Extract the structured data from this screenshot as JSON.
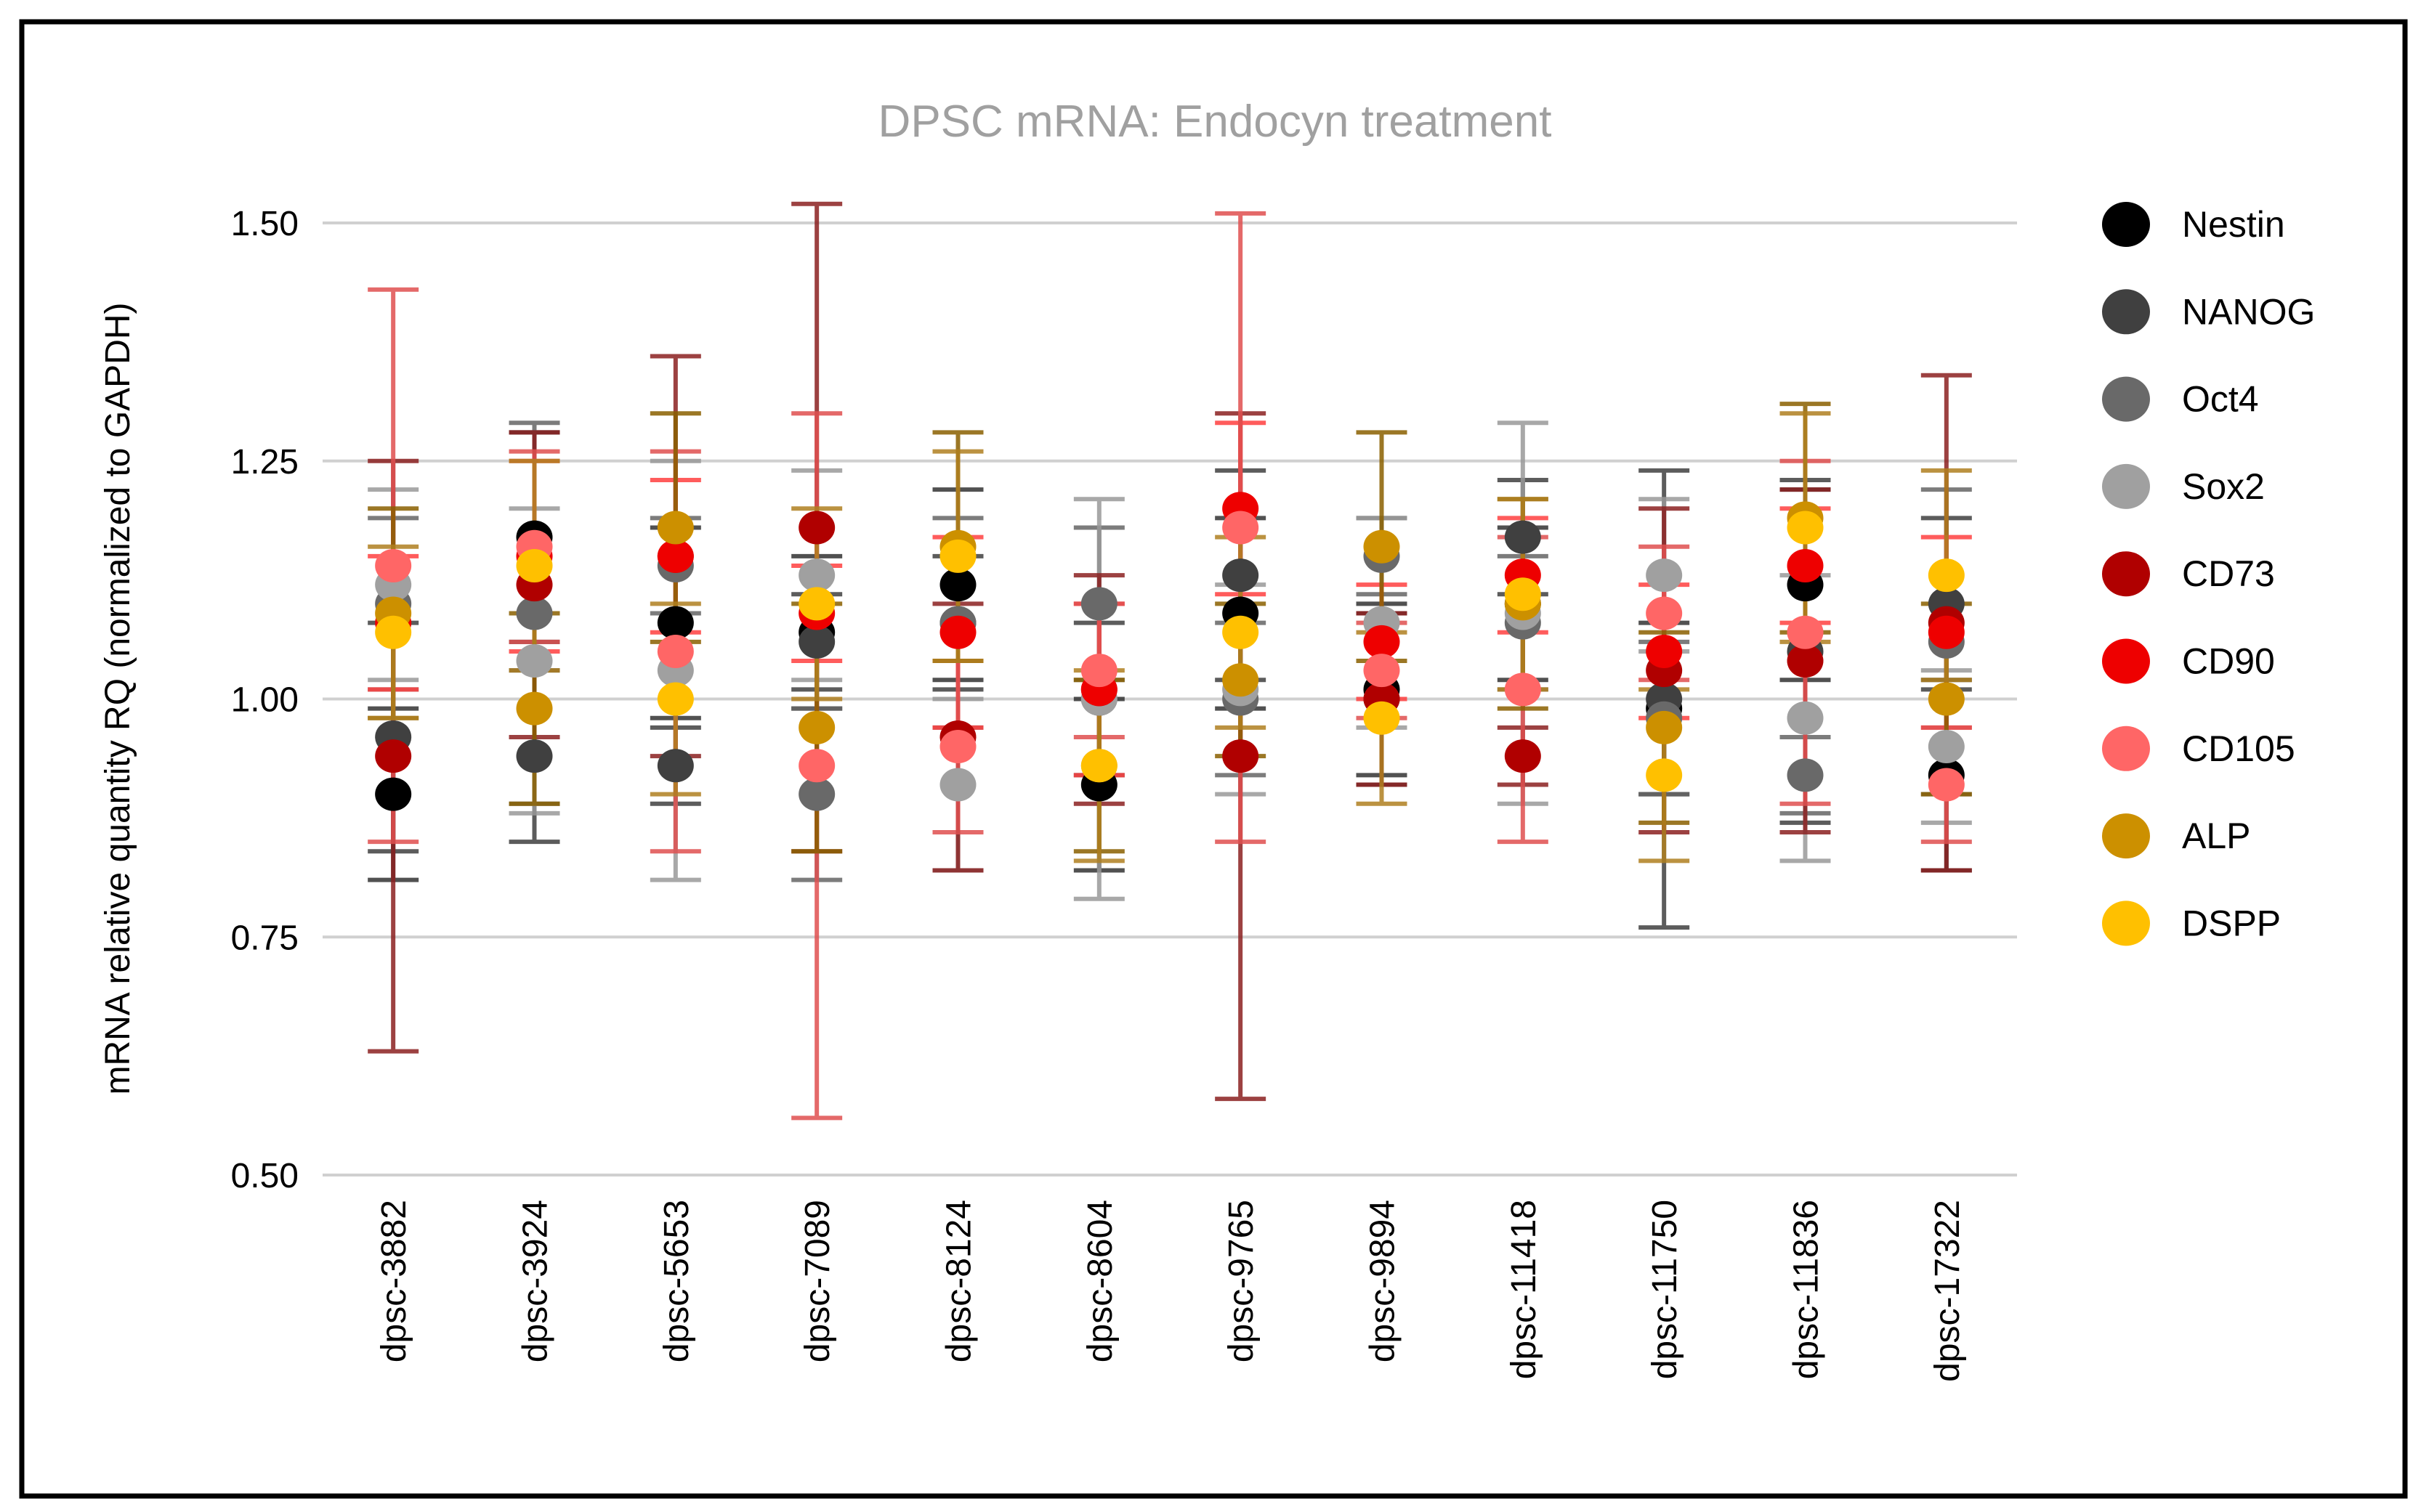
{
  "chart_data": {
    "type": "scatter",
    "title": "DPSC mRNA: Endocyn treatment",
    "xlabel": "",
    "ylabel": "mRNA relative quantity RQ (normalized to GAPDH)",
    "ylim": [
      0.5,
      1.5
    ],
    "yticks": [
      0.5,
      0.75,
      1.0,
      1.25,
      1.5
    ],
    "ytick_labels": [
      "0.50",
      "0.75",
      "1.00",
      "1.25",
      "1.50"
    ],
    "grid": true,
    "legend_position": "right",
    "categories": [
      "dpsc-3882",
      "dpsc-3924",
      "dpsc-5653",
      "dpsc-7089",
      "dpsc-8124",
      "dpsc-8604",
      "dpsc-9765",
      "dpsc-9894",
      "dpsc-11418",
      "dpsc-11750",
      "dpsc-11836",
      "dpsc-17322"
    ],
    "series": [
      {
        "name": "Nestin",
        "color": "#000000",
        "bar_color": "#333333",
        "values": [
          0.9,
          1.17,
          1.08,
          1.07,
          1.12,
          0.91,
          1.09,
          1.01,
          1.1,
          0.99,
          1.12,
          0.92
        ],
        "err": [
          0.09,
          0.11,
          0.1,
          0.08,
          0.1,
          0.09,
          0.1,
          0.09,
          0.08,
          0.09,
          0.1,
          0.1
        ]
      },
      {
        "name": "NANOG",
        "color": "#404040",
        "bar_color": "#404040",
        "values": [
          0.96,
          0.94,
          0.93,
          1.06,
          1.08,
          1.0,
          1.13,
          1.0,
          1.17,
          1.0,
          1.05,
          1.1
        ],
        "err": [
          0.12,
          0.09,
          0.04,
          0.05,
          0.07,
          0.08,
          0.11,
          0.09,
          0.06,
          0.24,
          0.18,
          0.09
        ]
      },
      {
        "name": "Oct4",
        "color": "#696969",
        "bar_color": "#666666",
        "values": [
          1.1,
          1.09,
          1.14,
          0.9,
          1.08,
          1.1,
          1.0,
          1.15,
          1.08,
          0.98,
          0.92,
          1.06
        ],
        "err": [
          0.09,
          0.2,
          0.05,
          0.09,
          0.11,
          0.08,
          0.08,
          0.04,
          0.07,
          0.08,
          0.04,
          0.16
        ]
      },
      {
        "name": "Sox2",
        "color": "#a0a0a0",
        "bar_color": "#999999",
        "values": [
          1.12,
          1.04,
          1.03,
          1.13,
          0.91,
          1.0,
          1.01,
          1.08,
          1.09,
          1.13,
          0.98,
          0.95
        ],
        "err": [
          0.1,
          0.16,
          0.22,
          0.11,
          0.09,
          0.21,
          0.11,
          0.11,
          0.2,
          0.08,
          0.15,
          0.08
        ]
      },
      {
        "name": "CD73",
        "color": "#b00000",
        "bar_color": "#8b2020",
        "values": [
          0.94,
          1.12,
          1.15,
          1.18,
          0.96,
          1.01,
          0.94,
          1.0,
          0.94,
          1.03,
          1.04,
          1.08
        ],
        "err": [
          0.31,
          0.16,
          0.21,
          0.34,
          0.14,
          0.12,
          0.36,
          0.09,
          0.03,
          0.17,
          0.18,
          0.26
        ]
      },
      {
        "name": "CD90",
        "color": "#ee0000",
        "bar_color": "#ff4040",
        "values": [
          1.08,
          1.15,
          1.15,
          1.09,
          1.07,
          1.01,
          1.2,
          1.06,
          1.13,
          1.05,
          1.14,
          1.07
        ],
        "err": [
          0.07,
          0.1,
          0.08,
          0.05,
          0.1,
          0.09,
          0.09,
          0.06,
          0.06,
          0.07,
          0.06,
          0.1
        ]
      },
      {
        "name": "CD105",
        "color": "#ff6666",
        "bar_color": "#e05050",
        "values": [
          1.14,
          1.16,
          1.05,
          0.93,
          0.95,
          1.03,
          1.18,
          1.03,
          1.01,
          1.09,
          1.07,
          0.91
        ],
        "err": [
          0.29,
          0.1,
          0.21,
          0.37,
          0.09,
          0.07,
          0.33,
          0.05,
          0.16,
          0.07,
          0.18,
          0.06
        ]
      },
      {
        "name": "ALP",
        "color": "#cc9000",
        "bar_color": "#8a6000",
        "values": [
          1.09,
          0.99,
          1.18,
          0.97,
          1.16,
          0.93,
          1.02,
          1.16,
          1.1,
          0.97,
          1.19,
          1.0
        ],
        "err": [
          0.11,
          0.1,
          0.12,
          0.13,
          0.12,
          0.09,
          0.08,
          0.12,
          0.11,
          0.1,
          0.12,
          0.1
        ]
      },
      {
        "name": "DSPP",
        "color": "#ffc000",
        "bar_color": "#b08020",
        "values": [
          1.07,
          1.14,
          1.0,
          1.1,
          1.15,
          0.93,
          1.07,
          0.98,
          1.11,
          0.92,
          1.18,
          1.13
        ],
        "err": [
          0.09,
          0.11,
          0.1,
          0.1,
          0.11,
          0.1,
          0.1,
          0.09,
          0.1,
          0.09,
          0.12,
          0.11
        ]
      }
    ]
  }
}
